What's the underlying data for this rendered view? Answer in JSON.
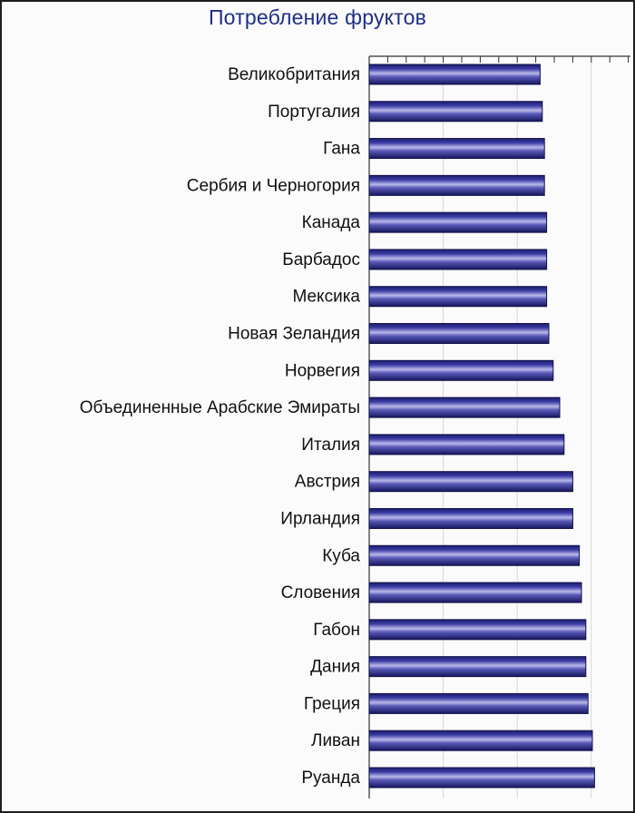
{
  "chart_data": {
    "type": "bar",
    "orientation": "horizontal",
    "title": "Потребление фруктов",
    "categories": [
      "Великобритания",
      "Португалия",
      "Гана",
      "Сербия и Черногория",
      "Канада",
      "Барбадос",
      "Мексика",
      "Новая Зеландия",
      "Норвегия",
      "Объединенные Арабские Эмираты",
      "Италия",
      "Австрия",
      "Ирландия",
      "Куба",
      "Словения",
      "Габон",
      "Дания",
      "Греция",
      "Ливан",
      "Руанда"
    ],
    "values": [
      157,
      159,
      161,
      161,
      163,
      163,
      163,
      165,
      169,
      175,
      179,
      187,
      187,
      193,
      195,
      199,
      199,
      201,
      205,
      207
    ],
    "xlim": [
      0,
      240
    ],
    "xgrid_step": 68,
    "grid": true,
    "bar_color": "#2c2c86"
  }
}
